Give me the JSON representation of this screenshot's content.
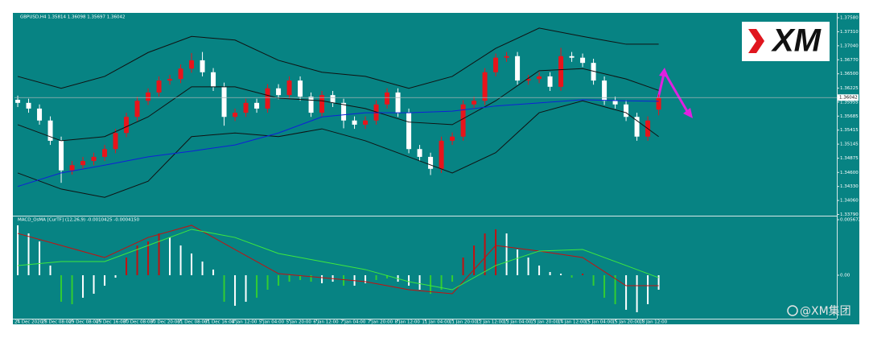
{
  "logo": "XM",
  "watermark": "@XM集团",
  "chart_data": [
    {
      "type": "candlestick",
      "title": "GBPUSD,H4 1.35814 1.36098 1.35697 1.36042",
      "open": [
        1.36,
        1.3594,
        1.3583,
        1.356,
        1.3521,
        1.3464,
        1.3474,
        1.3482,
        1.349,
        1.3505,
        1.3536,
        1.3567,
        1.3598,
        1.3614,
        1.3637,
        1.364,
        1.366,
        1.3676,
        1.3653,
        1.3625,
        1.3567,
        1.3575,
        1.3594,
        1.3583,
        1.3622,
        1.3609,
        1.3637,
        1.3606,
        1.3575,
        1.3609,
        1.3594,
        1.356,
        1.3552,
        1.356,
        1.3591,
        1.3614,
        1.3575,
        1.3505,
        1.349,
        1.3467,
        1.3521,
        1.3529,
        1.3591,
        1.3598,
        1.3653,
        1.3681,
        1.3684,
        1.3637,
        1.364,
        1.3645,
        1.3625,
        1.3684,
        1.3681,
        1.3671,
        1.3637,
        1.3598,
        1.3591,
        1.3567,
        1.3529,
        1.3581
      ],
      "high": [
        1.3608,
        1.3602,
        1.3591,
        1.3568,
        1.3529,
        1.3482,
        1.349,
        1.3498,
        1.3513,
        1.3544,
        1.3575,
        1.3606,
        1.3622,
        1.3645,
        1.3648,
        1.3668,
        1.369,
        1.3692,
        1.3661,
        1.3633,
        1.3583,
        1.3602,
        1.3602,
        1.363,
        1.363,
        1.3645,
        1.3645,
        1.3614,
        1.3617,
        1.3617,
        1.3602,
        1.3568,
        1.3568,
        1.3599,
        1.3622,
        1.3622,
        1.3583,
        1.3513,
        1.3498,
        1.3529,
        1.3537,
        1.3599,
        1.3606,
        1.3661,
        1.3689,
        1.3692,
        1.3692,
        1.3648,
        1.3653,
        1.3653,
        1.37,
        1.3692,
        1.3689,
        1.3679,
        1.3645,
        1.3606,
        1.3599,
        1.3575,
        1.3568,
        1.361
      ],
      "low": [
        1.3586,
        1.3575,
        1.3552,
        1.3513,
        1.344,
        1.3456,
        1.3466,
        1.3474,
        1.3482,
        1.3497,
        1.3528,
        1.3559,
        1.359,
        1.3606,
        1.3629,
        1.3632,
        1.3652,
        1.3645,
        1.3617,
        1.355,
        1.3559,
        1.3567,
        1.3575,
        1.3575,
        1.3601,
        1.3601,
        1.3598,
        1.3567,
        1.3567,
        1.3586,
        1.3545,
        1.3544,
        1.3544,
        1.3552,
        1.3583,
        1.3567,
        1.3497,
        1.3482,
        1.3455,
        1.3459,
        1.3513,
        1.3521,
        1.3583,
        1.359,
        1.3645,
        1.3673,
        1.3629,
        1.3629,
        1.3632,
        1.3617,
        1.3617,
        1.3673,
        1.3663,
        1.3629,
        1.359,
        1.3583,
        1.3559,
        1.3521,
        1.3521,
        1.357
      ],
      "close": [
        1.3594,
        1.3583,
        1.356,
        1.3521,
        1.3464,
        1.3474,
        1.3482,
        1.349,
        1.3505,
        1.3536,
        1.3567,
        1.3598,
        1.3614,
        1.3637,
        1.364,
        1.366,
        1.3676,
        1.3653,
        1.3625,
        1.3567,
        1.3575,
        1.3594,
        1.3583,
        1.3622,
        1.3609,
        1.3637,
        1.3606,
        1.3575,
        1.3609,
        1.3594,
        1.356,
        1.3552,
        1.356,
        1.3591,
        1.3614,
        1.3575,
        1.3505,
        1.349,
        1.3467,
        1.3521,
        1.3529,
        1.3591,
        1.3598,
        1.3653,
        1.3681,
        1.3684,
        1.3637,
        1.364,
        1.3645,
        1.3625,
        1.3684,
        1.3681,
        1.3671,
        1.3637,
        1.3598,
        1.3591,
        1.3567,
        1.3529,
        1.356,
        1.3604
      ],
      "up_color": "#e8141b",
      "down_color": "#ffffff",
      "indicator_x": [
        0,
        4,
        8,
        12,
        16,
        20,
        24,
        28,
        32,
        36,
        40,
        44,
        48,
        52,
        56,
        59
      ],
      "overlays": [
        {
          "color": "#111111",
          "values": [
            1.3645,
            1.3622,
            1.3645,
            1.3691,
            1.3722,
            1.3715,
            1.3676,
            1.3653,
            1.3645,
            1.3622,
            1.3645,
            1.3699,
            1.3738,
            1.3722,
            1.3707,
            1.3707
          ]
        },
        {
          "color": "#111111",
          "values": [
            1.3552,
            1.3521,
            1.3529,
            1.3567,
            1.3625,
            1.3625,
            1.3603,
            1.3598,
            1.3583,
            1.3557,
            1.3552,
            1.3598,
            1.3656,
            1.366,
            1.364,
            1.3618
          ]
        },
        {
          "color": "#111111",
          "values": [
            1.3459,
            1.3428,
            1.3412,
            1.3443,
            1.3529,
            1.3536,
            1.3529,
            1.3544,
            1.3521,
            1.349,
            1.3459,
            1.3498,
            1.3575,
            1.3598,
            1.3575,
            1.3529
          ]
        },
        {
          "color": "#1020d8",
          "values": [
            1.3433,
            1.3459,
            1.3474,
            1.349,
            1.3501,
            1.3513,
            1.3536,
            1.3567,
            1.3575,
            1.3575,
            1.3578,
            1.3588,
            1.3594,
            1.36,
            1.3598,
            1.3597
          ]
        }
      ],
      "xlim": [
        -0.3,
        75.4
      ],
      "ylim": [
        1.33767,
        1.37658
      ],
      "yticks": [
        {
          "value": 1.3758,
          "label": "1.37580"
        },
        {
          "value": 1.3731,
          "label": "1.37310"
        },
        {
          "value": 1.3704,
          "label": "1.37040"
        },
        {
          "value": 1.3677,
          "label": "1.36770"
        },
        {
          "value": 1.365,
          "label": "1.36500"
        },
        {
          "value": 1.36225,
          "label": "1.36225"
        },
        {
          "value": 1.35955,
          "label": "1.35955"
        },
        {
          "value": 1.35685,
          "label": "1.35685"
        },
        {
          "value": 1.35415,
          "label": "1.35415"
        },
        {
          "value": 1.35145,
          "label": "1.35145"
        },
        {
          "value": 1.34875,
          "label": "1.34875"
        },
        {
          "value": 1.346,
          "label": "1.34600"
        },
        {
          "value": 1.3433,
          "label": "1.34330"
        },
        {
          "value": 1.3406,
          "label": "1.34060"
        },
        {
          "value": 1.3379,
          "label": "1.33790"
        }
      ],
      "current_price": {
        "value": 1.36042,
        "label": "1.36042"
      }
    },
    {
      "type": "macd",
      "title": "MACD_OsMA [CurTF] (12,26,9) -0.0010425 -0.0004150",
      "histogram": [
        0.0051,
        0.00427,
        0.00345,
        0.00099,
        -0.00271,
        -0.00296,
        -0.0023,
        -0.00189,
        -0.00107,
        -0.00025,
        0.00181,
        0.00304,
        0.00345,
        0.00427,
        0.00386,
        0.00304,
        0.00222,
        0.0014,
        0.00058,
        -0.00271,
        -0.00312,
        -0.00271,
        -0.0023,
        -0.00148,
        -0.00107,
        -0.00066,
        -0.00049,
        -0.00066,
        -0.00082,
        -0.00066,
        -0.00107,
        -0.00107,
        -0.00082,
        -0.00049,
        -0.00033,
        -0.00066,
        -0.00107,
        -0.00148,
        -0.00189,
        -0.00148,
        -0.00066,
        0.00181,
        0.00304,
        0.00427,
        0.00469,
        0.00427,
        0.00263,
        0.00181,
        0.00099,
        0.00033,
        0.00016,
        -0.00025,
        0.00016,
        -0.00107,
        -0.0023,
        -0.00296,
        -0.00353,
        -0.00378,
        -0.00296,
        -0.00148
      ],
      "histogram_colors": [
        "#ffffff",
        "#ffffff",
        "#ffffff",
        "#ffffff",
        "#32cd32",
        "#32cd32",
        "#ffffff",
        "#ffffff",
        "#ffffff",
        "#ffffff",
        "#c41010",
        "#c41010",
        "#c41010",
        "#c41010",
        "#ffffff",
        "#ffffff",
        "#ffffff",
        "#ffffff",
        "#ffffff",
        "#32cd32",
        "#ffffff",
        "#ffffff",
        "#32cd32",
        "#32cd32",
        "#32cd32",
        "#32cd32",
        "#32cd32",
        "#32cd32",
        "#ffffff",
        "#ffffff",
        "#32cd32",
        "#ffffff",
        "#ffffff",
        "#32cd32",
        "#32cd32",
        "#ffffff",
        "#ffffff",
        "#ffffff",
        "#32cd32",
        "#32cd32",
        "#32cd32",
        "#c41010",
        "#c41010",
        "#c41010",
        "#c41010",
        "#ffffff",
        "#ffffff",
        "#ffffff",
        "#ffffff",
        "#ffffff",
        "#ffffff",
        "#32cd32",
        "#c41010",
        "#32cd32",
        "#32cd32",
        "#32cd32",
        "#ffffff",
        "#ffffff",
        "#ffffff",
        "#ffffff"
      ],
      "x": [
        0,
        4,
        8,
        12,
        16,
        20,
        24,
        28,
        32,
        36,
        40,
        44,
        48,
        52,
        56,
        59
      ],
      "lines": [
        {
          "color": "#c41010",
          "values": [
            0.00427,
            0.00304,
            0.00181,
            0.00386,
            0.0051,
            0.00263,
            0.00016,
            -0.00025,
            -0.00066,
            -0.00148,
            -0.00189,
            0.00304,
            0.00247,
            0.00181,
            -0.00107,
            -0.00107
          ]
        },
        {
          "color": "#3ee83e",
          "values": [
            0.00099,
            0.0014,
            0.0014,
            0.00304,
            0.00469,
            0.00386,
            0.00222,
            0.0014,
            0.00058,
            -0.00066,
            -0.00148,
            0.00099,
            0.00247,
            0.00263,
            0.00099,
            -0.00025
          ]
        }
      ],
      "xlim": [
        -0.3,
        75.4
      ],
      "ylim": [
        -0.00444,
        0.00592
      ],
      "yticks": [
        {
          "value": 0.005672,
          "label": "0.005672"
        },
        {
          "value": 0,
          "label": "0.00"
        }
      ],
      "xticks": [
        {
          "value": 0,
          "label": "24 Dec 2020"
        },
        {
          "value": 2.5,
          "label": "28 Dec 08:00"
        },
        {
          "value": 5,
          "label": "29 Dec 08:00"
        },
        {
          "value": 7.5,
          "label": "29 Dec 16:00"
        },
        {
          "value": 10,
          "label": "30 Dec 08:00"
        },
        {
          "value": 12.5,
          "label": "30 Dec 20:00"
        },
        {
          "value": 15,
          "label": "31 Dec 08:00"
        },
        {
          "value": 17.5,
          "label": "31 Dec 16:00"
        },
        {
          "value": 20,
          "label": "4 Jan 12:00"
        },
        {
          "value": 22.5,
          "label": "5 Jan 04:00"
        },
        {
          "value": 25,
          "label": "5 Jan 20:00"
        },
        {
          "value": 27.5,
          "label": "6 Jan 12:00"
        },
        {
          "value": 30,
          "label": "7 Jan 04:00"
        },
        {
          "value": 32.5,
          "label": "7 Jan 20:00"
        },
        {
          "value": 35,
          "label": "8 Jan 12:00"
        },
        {
          "value": 37.5,
          "label": "11 Jan 04:00"
        },
        {
          "value": 40,
          "label": "11 Jan 20:00"
        },
        {
          "value": 42.5,
          "label": "12 Jan 12:00"
        },
        {
          "value": 45,
          "label": "13 Jan 04:00"
        },
        {
          "value": 47.5,
          "label": "13 Jan 20:00"
        },
        {
          "value": 50,
          "label": "14 Jan 12:00"
        },
        {
          "value": 52.5,
          "label": "15 Jan 04:00"
        },
        {
          "value": 55,
          "label": "15 Jan 20:00"
        },
        {
          "value": 57.5,
          "label": "18 Jan 12:00"
        }
      ]
    }
  ]
}
